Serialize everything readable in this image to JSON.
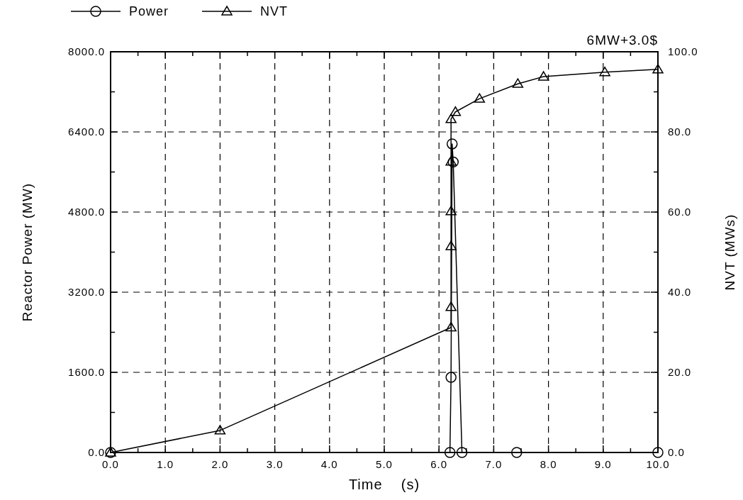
{
  "chart_data": {
    "type": "line",
    "xlabel": "Time    (s)",
    "ylabel": "Reactor Power (MW)",
    "y2label": "NVT (MWs)",
    "annotations": [
      "6MW+3.0$"
    ],
    "xlim": [
      0,
      10
    ],
    "xticks": [
      {
        "value": 0,
        "label": "0.0"
      },
      {
        "value": 0.5,
        "label": null
      },
      {
        "value": 1,
        "label": "1.0"
      },
      {
        "value": 1.5,
        "label": null
      },
      {
        "value": 2,
        "label": "2.0"
      },
      {
        "value": 2.5,
        "label": null
      },
      {
        "value": 3,
        "label": "3.0"
      },
      {
        "value": 3.5,
        "label": null
      },
      {
        "value": 4,
        "label": "4.0"
      },
      {
        "value": 4.5,
        "label": null
      },
      {
        "value": 5,
        "label": "5.0"
      },
      {
        "value": 5.5,
        "label": null
      },
      {
        "value": 6,
        "label": "6.0"
      },
      {
        "value": 6.5,
        "label": null
      },
      {
        "value": 7,
        "label": "7.0"
      },
      {
        "value": 7.5,
        "label": null
      },
      {
        "value": 8,
        "label": "8.0"
      },
      {
        "value": 8.5,
        "label": null
      },
      {
        "value": 9,
        "label": "9.0"
      },
      {
        "value": 9.5,
        "label": null
      },
      {
        "value": 10,
        "label": "10.0"
      }
    ],
    "ylim": [
      0,
      8000
    ],
    "yticks": [
      {
        "value": 0,
        "label": "0.0"
      },
      {
        "value": 800,
        "label": null
      },
      {
        "value": 1600,
        "label": "1600.0"
      },
      {
        "value": 2400,
        "label": null
      },
      {
        "value": 3200,
        "label": "3200.0"
      },
      {
        "value": 4000,
        "label": null
      },
      {
        "value": 4800,
        "label": "4800.0"
      },
      {
        "value": 5600,
        "label": null
      },
      {
        "value": 6400,
        "label": "6400.0"
      },
      {
        "value": 7200,
        "label": null
      },
      {
        "value": 8000,
        "label": "8000.0"
      }
    ],
    "y2lim": [
      0,
      100
    ],
    "y2ticks": [
      {
        "value": 0,
        "label": "0.0"
      },
      {
        "value": 10,
        "label": null
      },
      {
        "value": 20,
        "label": "20.0"
      },
      {
        "value": 30,
        "label": null
      },
      {
        "value": 40,
        "label": "40.0"
      },
      {
        "value": 50,
        "label": null
      },
      {
        "value": 60,
        "label": "60.0"
      },
      {
        "value": 70,
        "label": null
      },
      {
        "value": 80,
        "label": "80.0"
      },
      {
        "value": 90,
        "label": null
      },
      {
        "value": 100,
        "label": "100.0"
      }
    ],
    "grid": true,
    "legend": "top left",
    "line_style": "solid",
    "series": [
      {
        "name": "Power",
        "color": "#000000",
        "marker": "circle",
        "x": [
          0,
          6.2,
          6.22,
          6.24,
          6.26,
          6.42,
          7.42,
          10
        ],
        "values": [
          0,
          0,
          1500,
          6160,
          5800,
          0,
          0,
          0
        ]
      },
      {
        "name": "NVT",
        "color": "#000000",
        "marker": "triangle",
        "axis": "y2",
        "x": [
          0,
          2,
          6.22,
          6.22,
          6.22,
          6.22,
          6.22,
          6.22,
          6.3,
          6.74,
          7.44,
          7.91,
          9.03,
          10
        ],
        "values": [
          0,
          5.5,
          31.2,
          36.3,
          51.5,
          60.2,
          72.6,
          83.2,
          85.0,
          88.3,
          92.0,
          93.8,
          94.9,
          95.6
        ]
      }
    ]
  }
}
